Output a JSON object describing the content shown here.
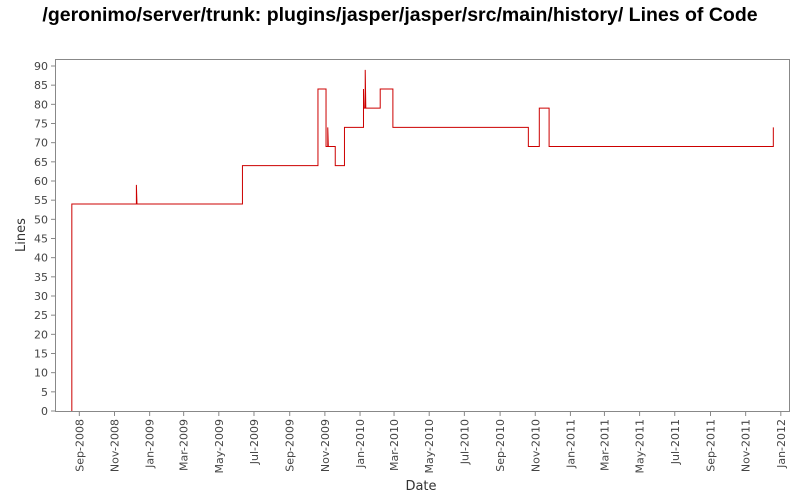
{
  "chart_data": {
    "type": "line",
    "title": "/geronimo/server/trunk: plugins/jasper/jasper/src/main/history/ Lines of Code",
    "xlabel": "Date",
    "ylabel": "Lines",
    "ylim": [
      0,
      90
    ],
    "yticks": [
      0,
      5,
      10,
      15,
      20,
      25,
      30,
      35,
      40,
      45,
      50,
      55,
      60,
      65,
      70,
      75,
      80,
      85,
      90
    ],
    "xlim": [
      "2008-07-26",
      "2012-01-10"
    ],
    "xticks": [
      {
        "date": "2008-09-01",
        "label": "Sep-2008"
      },
      {
        "date": "2008-11-01",
        "label": "Nov-2008"
      },
      {
        "date": "2009-01-01",
        "label": "Jan-2009"
      },
      {
        "date": "2009-03-01",
        "label": "Mar-2009"
      },
      {
        "date": "2009-05-01",
        "label": "May-2009"
      },
      {
        "date": "2009-07-01",
        "label": "Jul-2009"
      },
      {
        "date": "2009-09-01",
        "label": "Sep-2009"
      },
      {
        "date": "2009-11-01",
        "label": "Nov-2009"
      },
      {
        "date": "2010-01-01",
        "label": "Jan-2010"
      },
      {
        "date": "2010-03-01",
        "label": "Mar-2010"
      },
      {
        "date": "2010-05-01",
        "label": "May-2010"
      },
      {
        "date": "2010-07-01",
        "label": "Jul-2010"
      },
      {
        "date": "2010-09-01",
        "label": "Sep-2010"
      },
      {
        "date": "2010-11-01",
        "label": "Nov-2010"
      },
      {
        "date": "2011-01-01",
        "label": "Jan-2011"
      },
      {
        "date": "2011-03-01",
        "label": "Mar-2011"
      },
      {
        "date": "2011-05-01",
        "label": "May-2011"
      },
      {
        "date": "2011-07-01",
        "label": "Jul-2011"
      },
      {
        "date": "2011-09-01",
        "label": "Sep-2011"
      },
      {
        "date": "2011-11-01",
        "label": "Nov-2011"
      },
      {
        "date": "2012-01-01",
        "label": "Jan-2012"
      }
    ],
    "grid": false,
    "line_color": "#cc0000",
    "series": [
      {
        "points": [
          [
            "2008-08-19",
            0
          ],
          [
            "2008-08-19",
            54
          ],
          [
            "2008-12-09",
            54
          ],
          [
            "2008-12-09",
            59
          ],
          [
            "2008-12-10",
            54
          ],
          [
            "2009-06-11",
            54
          ],
          [
            "2009-06-11",
            64
          ],
          [
            "2009-10-20",
            64
          ],
          [
            "2009-10-20",
            84
          ],
          [
            "2009-11-03",
            84
          ],
          [
            "2009-11-03",
            69
          ],
          [
            "2009-11-06",
            69
          ],
          [
            "2009-11-06",
            74
          ],
          [
            "2009-11-07",
            69
          ],
          [
            "2009-11-19",
            69
          ],
          [
            "2009-11-19",
            64
          ],
          [
            "2009-12-05",
            64
          ],
          [
            "2009-12-05",
            74
          ],
          [
            "2010-01-07",
            74
          ],
          [
            "2010-01-07",
            84
          ],
          [
            "2010-01-08",
            79
          ],
          [
            "2010-01-10",
            79
          ],
          [
            "2010-01-10",
            89
          ],
          [
            "2010-01-11",
            79
          ],
          [
            "2010-02-05",
            79
          ],
          [
            "2010-02-05",
            84
          ],
          [
            "2010-02-27",
            84
          ],
          [
            "2010-02-27",
            74
          ],
          [
            "2010-10-20",
            74
          ],
          [
            "2010-10-20",
            69
          ],
          [
            "2010-11-08",
            69
          ],
          [
            "2010-11-08",
            79
          ],
          [
            "2010-11-25",
            79
          ],
          [
            "2010-11-25",
            69
          ],
          [
            "2011-12-19",
            69
          ],
          [
            "2011-12-19",
            74
          ]
        ]
      }
    ]
  }
}
